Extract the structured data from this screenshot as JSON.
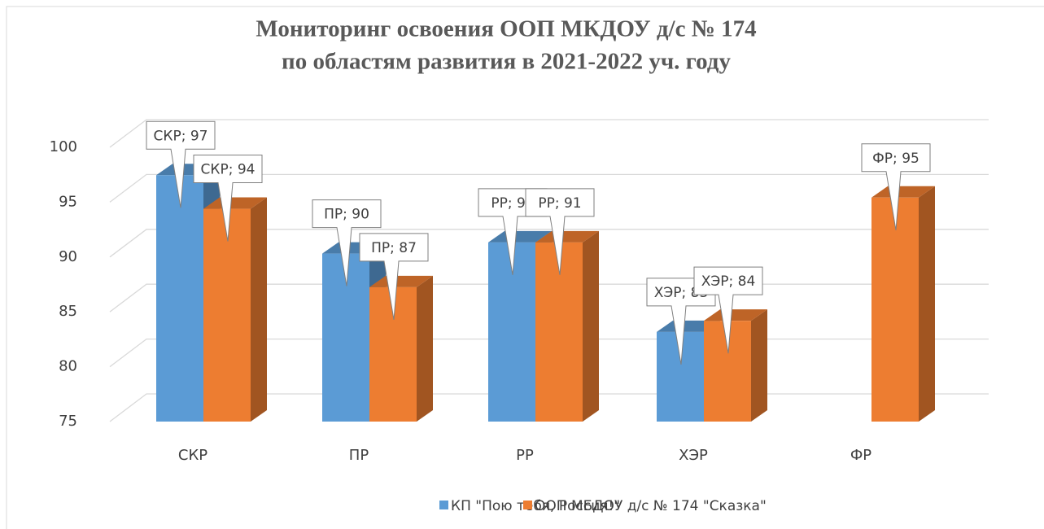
{
  "chart_data": {
    "type": "bar3d",
    "title": [
      "Мониторинг освоения ООП МКДОУ д/с № 174",
      "по областям развития в 2021-2022 уч. году"
    ],
    "categories": [
      "СКР",
      "ПР",
      "РР",
      "ХЭР",
      "ФР"
    ],
    "series": [
      {
        "name": "КП \"Пою тебя, Россия!\"",
        "color": "#5b9bd5",
        "values": [
          97,
          90,
          91,
          83,
          null
        ],
        "value_labels": [
          "СКР; 97",
          "ПР; 90",
          "РР; 91",
          "ХЭР; 83",
          null
        ]
      },
      {
        "name": "ООП МБДОУ д/с № 174 \"Сказка\"",
        "color": "#ed7d31",
        "values": [
          94,
          87,
          91,
          84,
          95
        ],
        "value_labels": [
          "СКР; 94",
          "ПР; 87",
          "РР; 91",
          "ХЭР; 84",
          "ФР; 95"
        ]
      }
    ],
    "ylim": [
      75,
      100
    ],
    "yticks": [
      75,
      80,
      85,
      90,
      95,
      100
    ],
    "grid": true,
    "legend": "bottom"
  }
}
